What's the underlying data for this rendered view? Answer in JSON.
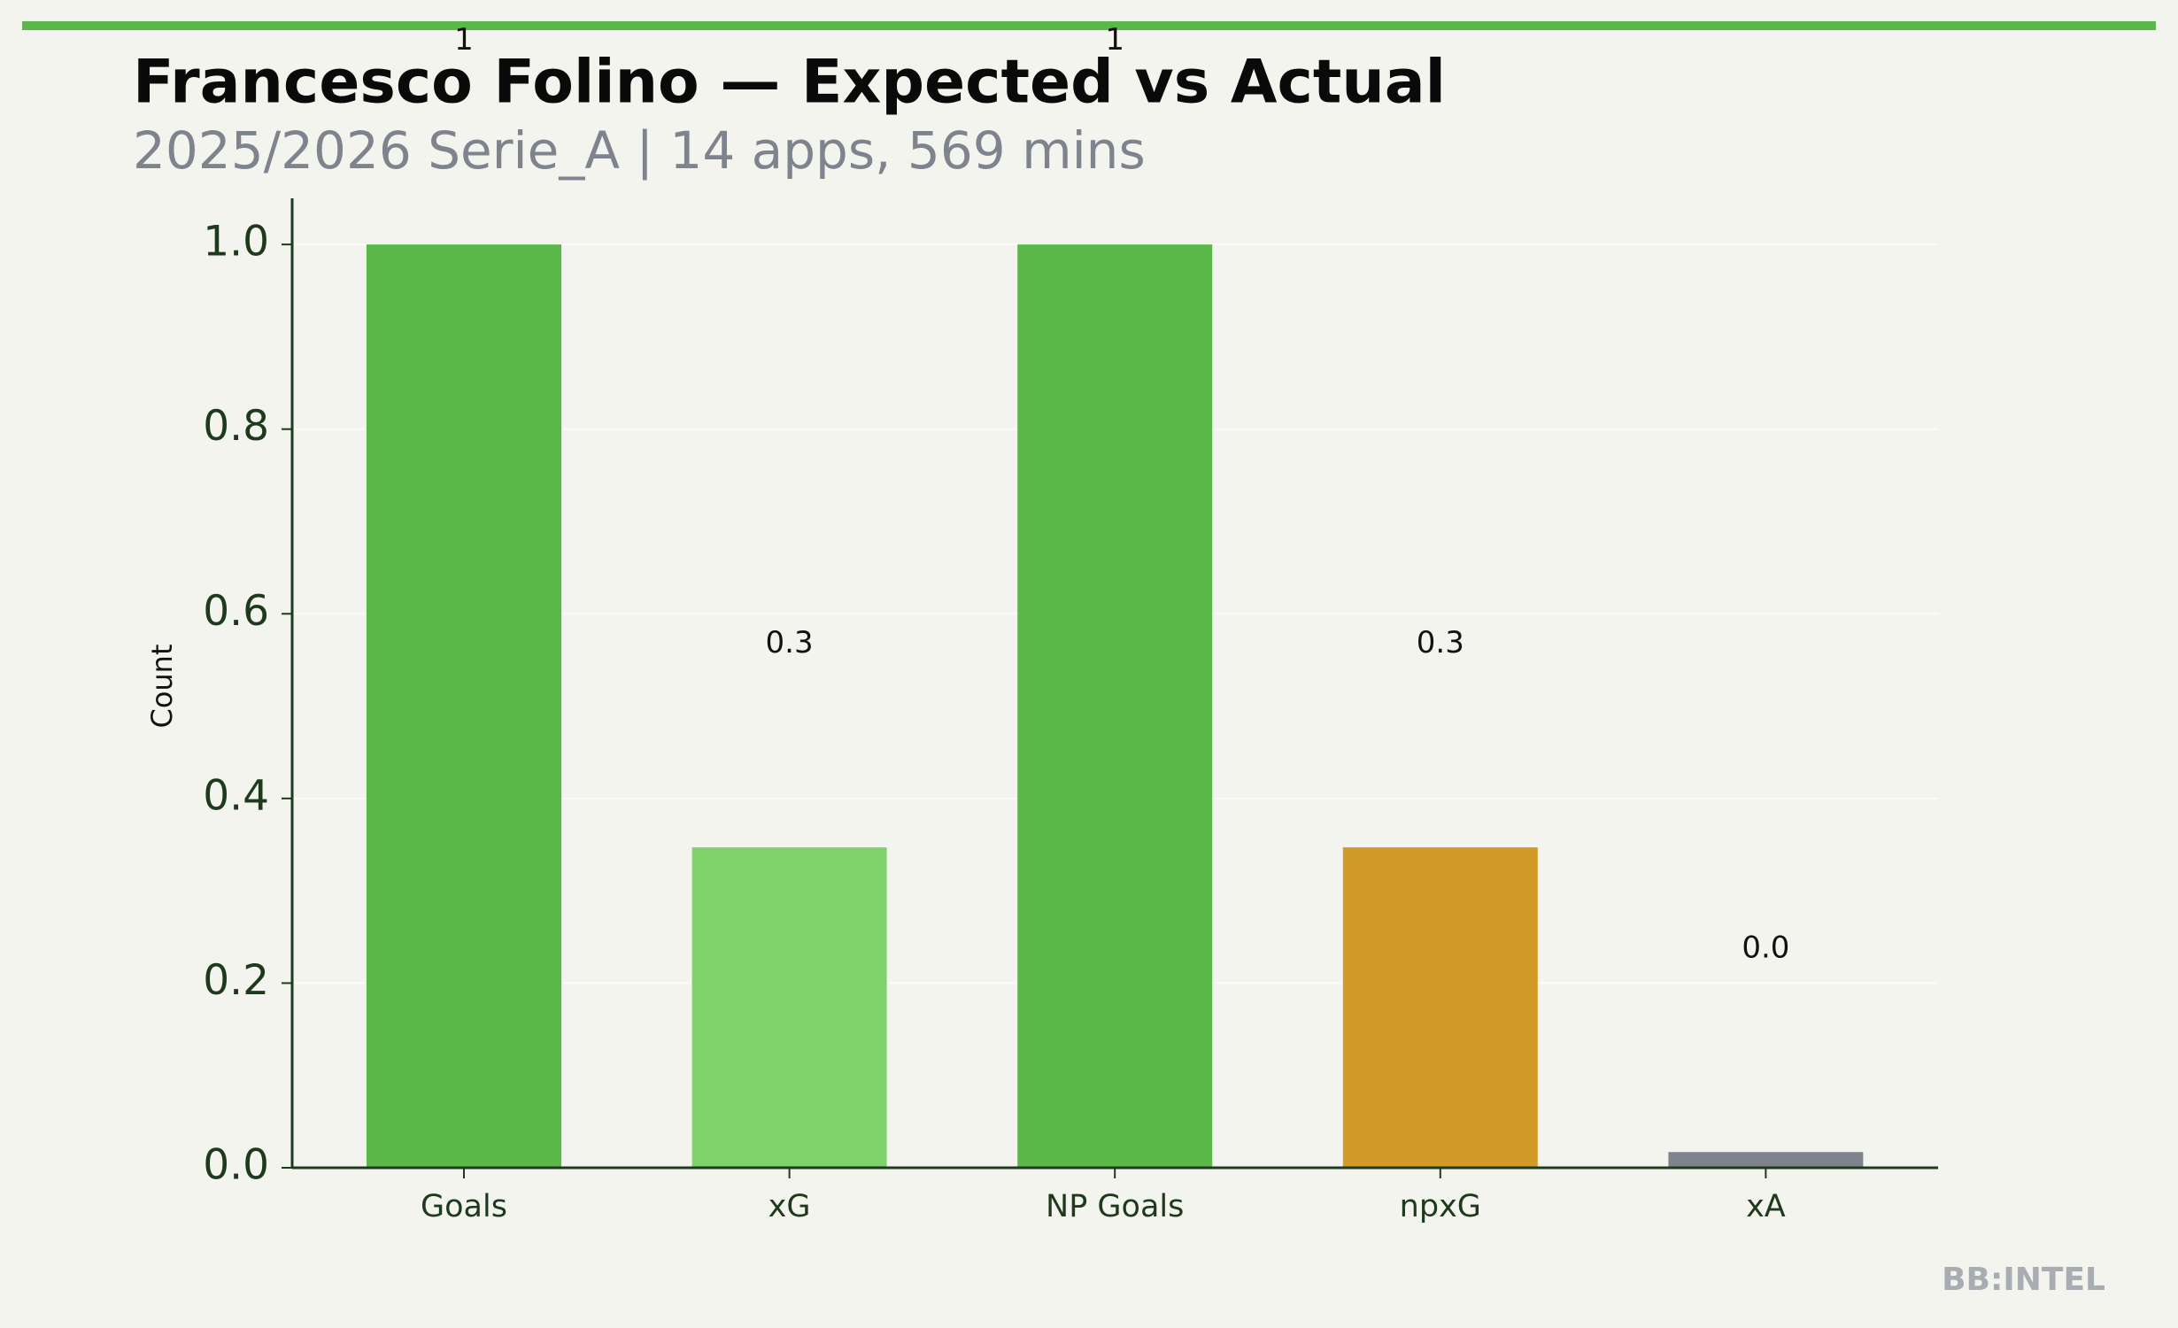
{
  "chart_data": {
    "type": "bar",
    "title": "Francesco Folino — Expected vs Actual",
    "subtitle": "2025/2026 Serie_A | 14 apps, 569 mins",
    "y_label": "Count",
    "categories": [
      "Goals",
      "xG",
      "NP Goals",
      "npxG",
      "xA"
    ],
    "values": [
      1.0,
      0.347,
      1.0,
      0.347,
      0.017
    ],
    "value_labels": [
      "1",
      "0.3",
      "1",
      "0.3",
      "0.0"
    ],
    "colors": [
      "#5ab849",
      "#7dd26a",
      "#5ab849",
      "#d29a26",
      "#7e838d"
    ],
    "ylim": [
      0,
      1.05
    ],
    "yticks": [
      {
        "value": 0,
        "label": "0.0"
      },
      0.2,
      0.4,
      0.6,
      0.8,
      {
        "value": 1,
        "label": "1.0"
      }
    ],
    "grid": true,
    "watermark": "BB:INTEL"
  }
}
